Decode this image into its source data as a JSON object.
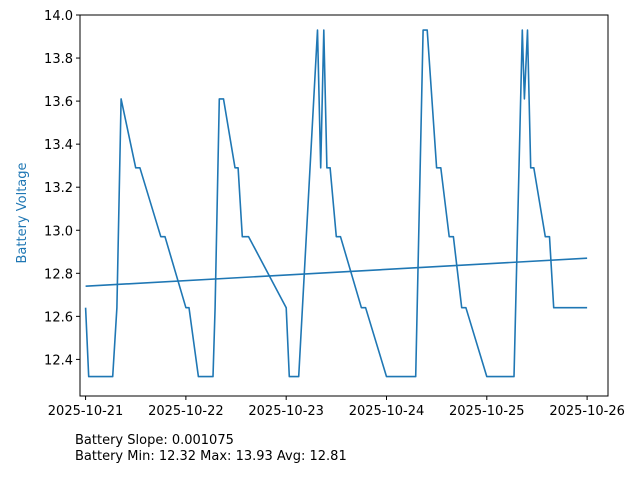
{
  "chart_data": {
    "type": "line",
    "ylabel": "Battery Voltage",
    "ylim": [
      12.23,
      14.0
    ],
    "yticks": [
      12.4,
      12.6,
      12.8,
      13.0,
      13.2,
      13.4,
      13.6,
      13.8,
      14.0
    ],
    "xticks": [
      "2025-10-21",
      "2025-10-22",
      "2025-10-23",
      "2025-10-24",
      "2025-10-25",
      "2025-10-26"
    ],
    "xlim": [
      "2025-10-20T22:40",
      "2025-10-26T05:00"
    ],
    "grid": false,
    "series": [
      {
        "color": "#1f77b4",
        "x": [
          "2025-10-21T00:00",
          "2025-10-21T00:45",
          "2025-10-21T03:00",
          "2025-10-21T06:30",
          "2025-10-21T07:30",
          "2025-10-21T08:30",
          "2025-10-21T12:00",
          "2025-10-21T13:00",
          "2025-10-21T18:00",
          "2025-10-21T19:00",
          "2025-10-22T00:00",
          "2025-10-22T00:45",
          "2025-10-22T03:00",
          "2025-10-22T06:30",
          "2025-10-22T07:00",
          "2025-10-22T08:00",
          "2025-10-22T09:00",
          "2025-10-22T11:45",
          "2025-10-22T12:30",
          "2025-10-22T13:30",
          "2025-10-22T15:00",
          "2025-10-23T00:00",
          "2025-10-23T00:45",
          "2025-10-23T03:00",
          "2025-10-23T07:30",
          "2025-10-23T08:15",
          "2025-10-23T09:00",
          "2025-10-23T09:45",
          "2025-10-23T10:30",
          "2025-10-23T12:00",
          "2025-10-23T13:00",
          "2025-10-23T18:00",
          "2025-10-23T19:00",
          "2025-10-24T00:00",
          "2025-10-24T00:45",
          "2025-10-24T03:00",
          "2025-10-24T07:00",
          "2025-10-24T08:45",
          "2025-10-24T09:45",
          "2025-10-24T12:00",
          "2025-10-24T13:00",
          "2025-10-24T15:00",
          "2025-10-24T16:00",
          "2025-10-24T18:00",
          "2025-10-24T19:00",
          "2025-10-25T00:00",
          "2025-10-25T00:45",
          "2025-10-25T03:00",
          "2025-10-25T06:30",
          "2025-10-25T08:30",
          "2025-10-25T09:00",
          "2025-10-25T09:45",
          "2025-10-25T10:30",
          "2025-10-25T11:15",
          "2025-10-25T14:00",
          "2025-10-25T15:00",
          "2025-10-25T16:00",
          "2025-10-25T17:00",
          "2025-10-26T00:00"
        ],
        "values": [
          12.64,
          12.32,
          12.32,
          12.32,
          12.64,
          13.61,
          13.29,
          13.29,
          12.97,
          12.97,
          12.64,
          12.64,
          12.32,
          12.32,
          12.64,
          13.61,
          13.61,
          13.29,
          13.29,
          12.97,
          12.97,
          12.64,
          12.32,
          12.32,
          13.93,
          13.29,
          13.93,
          13.29,
          13.29,
          12.97,
          12.97,
          12.64,
          12.64,
          12.32,
          12.32,
          12.32,
          12.32,
          13.93,
          13.93,
          13.29,
          13.29,
          12.97,
          12.97,
          12.64,
          12.64,
          12.32,
          12.32,
          12.32,
          12.32,
          13.93,
          13.61,
          13.93,
          13.29,
          13.29,
          12.97,
          12.97,
          12.64,
          12.64,
          12.64
        ]
      },
      {
        "color": "#1f77b4",
        "x": [
          "2025-10-21T00:00",
          "2025-10-26T00:00"
        ],
        "values": [
          12.74,
          12.87
        ]
      }
    ]
  },
  "stats": {
    "slope": "Battery Slope: 0.001075",
    "minmax": "Battery Min: 12.32 Max: 13.93 Avg: 12.81"
  }
}
